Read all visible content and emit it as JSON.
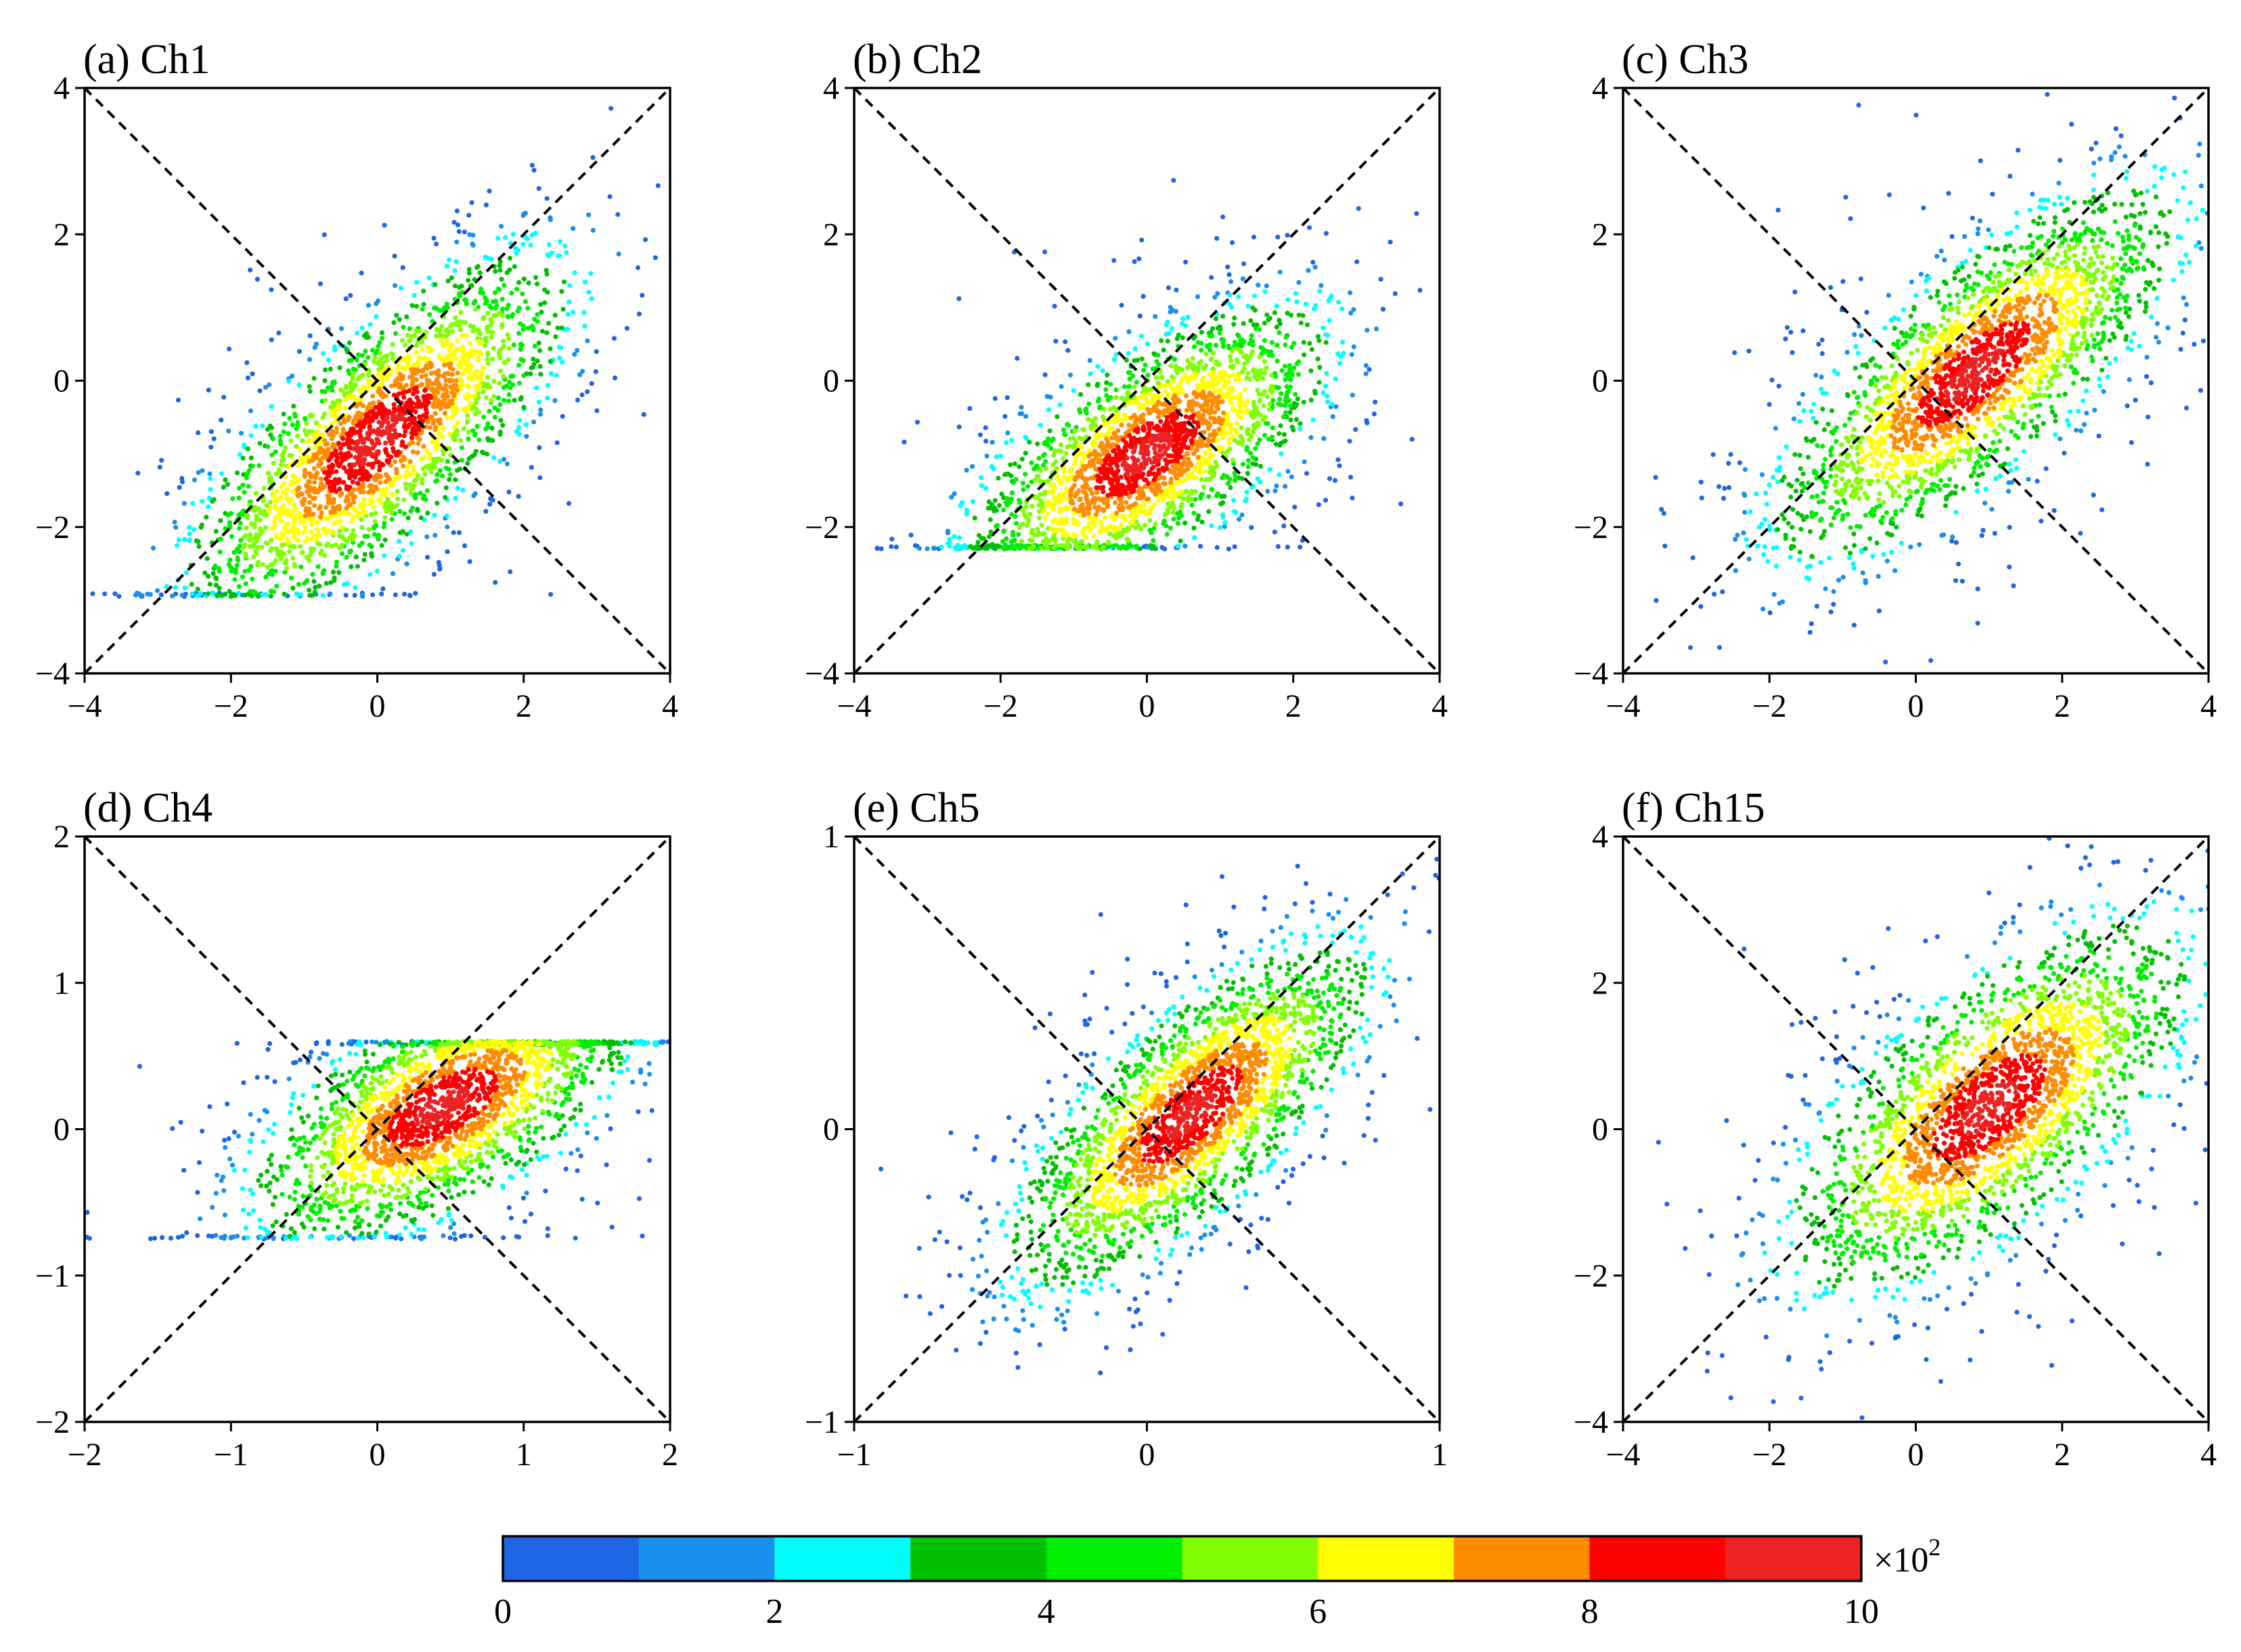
{
  "chart_data": [
    {
      "type": "scatter",
      "title": "(a) Ch1",
      "xlim": [
        -4,
        4
      ],
      "ylim": [
        -4,
        4
      ],
      "xticks": [
        "−4",
        "−2",
        "0",
        "2",
        "4"
      ],
      "yticks": [
        "−4",
        "−2",
        "0",
        "2",
        "4"
      ],
      "xtick_values": [
        -4,
        -2,
        0,
        2,
        4
      ],
      "ytick_values": [
        -4,
        -2,
        0,
        2,
        4
      ],
      "reference_lines": [
        "y = x",
        "y = -x"
      ],
      "density_center": [
        0.0,
        -0.8
      ],
      "slope": 0.95,
      "spread_major": 1.5,
      "spread_minor": 0.55,
      "clip": {
        "ymin": -2.95
      }
    },
    {
      "type": "scatter",
      "title": "(b) Ch2",
      "xlim": [
        -4,
        4
      ],
      "ylim": [
        -4,
        4
      ],
      "xticks": [
        "−4",
        "−2",
        "0",
        "2",
        "4"
      ],
      "yticks": [
        "−4",
        "−2",
        "0",
        "2",
        "4"
      ],
      "xtick_values": [
        -4,
        -2,
        0,
        2,
        4
      ],
      "ytick_values": [
        -4,
        -2,
        0,
        2,
        4
      ],
      "reference_lines": [
        "y = x",
        "y = -x"
      ],
      "density_center": [
        0.0,
        -1.0
      ],
      "slope": 0.75,
      "spread_major": 1.3,
      "spread_minor": 0.55,
      "clip": {
        "ymin": -2.3
      }
    },
    {
      "type": "scatter",
      "title": "(c) Ch3",
      "xlim": [
        -4,
        4
      ],
      "ylim": [
        -4,
        4
      ],
      "xticks": [
        "−4",
        "−2",
        "0",
        "2",
        "4"
      ],
      "yticks": [
        "−4",
        "−2",
        "0",
        "2",
        "4"
      ],
      "xtick_values": [
        -4,
        -2,
        0,
        2,
        4
      ],
      "ytick_values": [
        -4,
        -2,
        0,
        2,
        4
      ],
      "reference_lines": [
        "y = x",
        "y = -x"
      ],
      "density_center": [
        0.8,
        0.1
      ],
      "slope": 0.9,
      "spread_major": 1.55,
      "spread_minor": 0.55,
      "clip": {}
    },
    {
      "type": "scatter",
      "title": "(d) Ch4",
      "xlim": [
        -2,
        2
      ],
      "ylim": [
        -2,
        2
      ],
      "xticks": [
        "−2",
        "−1",
        "0",
        "1",
        "2"
      ],
      "yticks": [
        "−2",
        "−1",
        "0",
        "1",
        "2"
      ],
      "xtick_values": [
        -2,
        -1,
        0,
        1,
        2
      ],
      "ytick_values": [
        -2,
        -1,
        0,
        1,
        2
      ],
      "reference_lines": [
        "y = x",
        "y = -x"
      ],
      "density_center": [
        0.45,
        0.15
      ],
      "slope": 0.6,
      "spread_major": 0.65,
      "spread_minor": 0.28,
      "clip": {
        "ymin": -0.75,
        "ymax": 0.6
      }
    },
    {
      "type": "scatter",
      "title": "(e) Ch5",
      "xlim": [
        -1,
        1
      ],
      "ylim": [
        -1,
        1
      ],
      "xticks": [
        "−1",
        "0",
        "1"
      ],
      "yticks": [
        "−1",
        "0",
        "1"
      ],
      "xtick_values": [
        -1,
        0,
        1
      ],
      "ytick_values": [
        -1,
        0,
        1
      ],
      "reference_lines": [
        "y = x",
        "y = -x"
      ],
      "density_center": [
        0.15,
        0.05
      ],
      "slope": 0.95,
      "spread_major": 0.35,
      "spread_minor": 0.13,
      "clip": {}
    },
    {
      "type": "scatter",
      "title": "(f) Ch15",
      "xlim": [
        -4,
        4
      ],
      "ylim": [
        -4,
        4
      ],
      "xticks": [
        "−4",
        "−2",
        "0",
        "2",
        "4"
      ],
      "yticks": [
        "−4",
        "−2",
        "0",
        "2",
        "4"
      ],
      "xtick_values": [
        -4,
        -2,
        0,
        2,
        4
      ],
      "ytick_values": [
        -4,
        -2,
        0,
        2,
        4
      ],
      "reference_lines": [
        "y = x",
        "y = -x"
      ],
      "density_center": [
        1.0,
        0.3
      ],
      "slope": 0.9,
      "spread_major": 1.5,
      "spread_minor": 0.65,
      "clip": {}
    }
  ],
  "colorbar": {
    "colors": [
      "#1f66e5",
      "#1a8fee",
      "#00ffff",
      "#00c000",
      "#00ee00",
      "#7fff00",
      "#ffff00",
      "#ff8c00",
      "#ff0000",
      "#ee2222"
    ],
    "ticks": [
      "0",
      "2",
      "4",
      "6",
      "8",
      "10"
    ],
    "multiplier": "×10",
    "exponent": "2",
    "range": [
      0,
      10
    ]
  }
}
